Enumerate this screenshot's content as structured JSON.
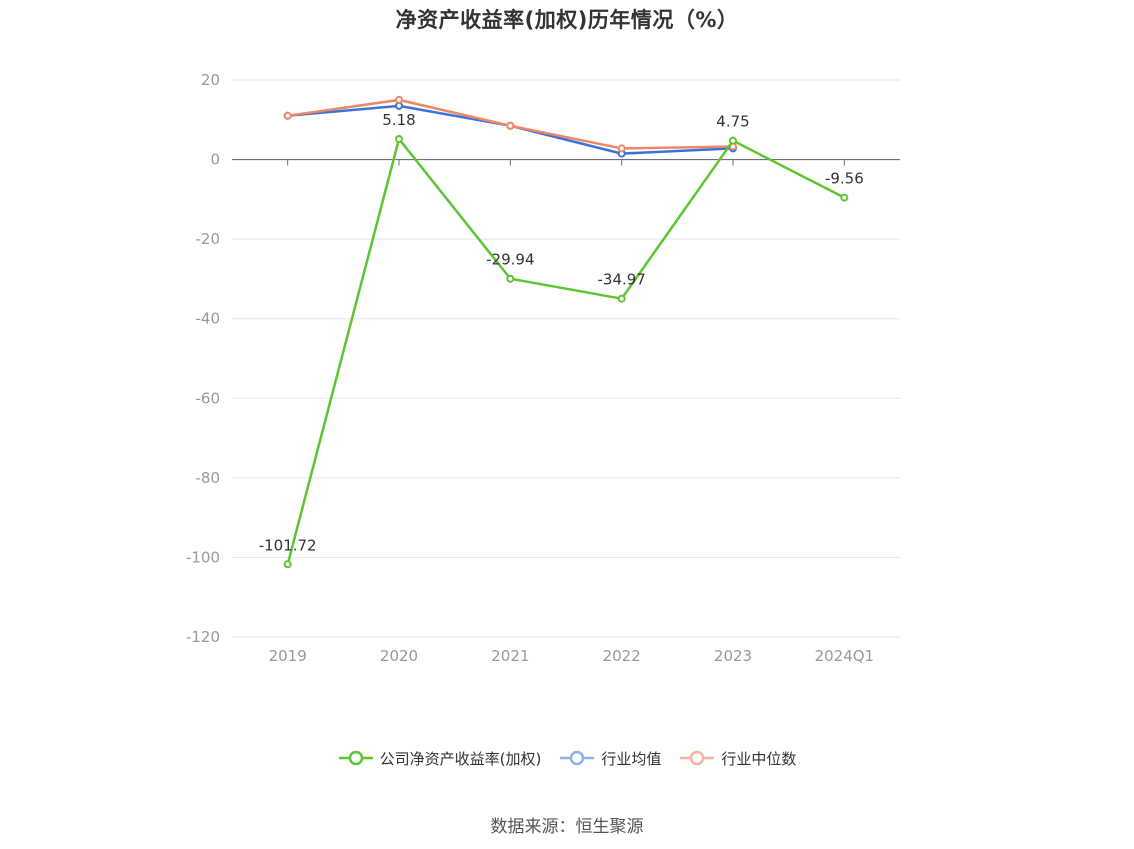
{
  "title": "净资产收益率(加权)历年情况（%）",
  "source": "数据来源：恒生聚源",
  "chart_data": {
    "type": "line",
    "title": "净资产收益率(加权)历年情况（%）",
    "categories": [
      "2019",
      "2020",
      "2021",
      "2022",
      "2023",
      "2024Q1"
    ],
    "ylim": [
      -120,
      20
    ],
    "yticks": [
      20,
      0,
      -20,
      -40,
      -60,
      -80,
      -100,
      -120
    ],
    "grid": true,
    "legend_position": "bottom-center",
    "series": [
      {
        "name": "公司净资产收益率(加权)",
        "color": "#5cc530",
        "values": [
          -101.72,
          5.18,
          -29.94,
          -34.97,
          4.75,
          -9.56
        ],
        "labels": [
          "-101.72",
          "5.18",
          "-29.94",
          "-34.97",
          "4.75",
          "-9.56"
        ],
        "show_labels": true
      },
      {
        "name": "行业均值",
        "color": "#3b72dd",
        "legend_color": "#8fb0ee",
        "values": [
          11.0,
          13.5,
          8.5,
          1.5,
          2.8,
          null
        ],
        "show_labels": false
      },
      {
        "name": "行业中位数",
        "color": "#ee8766",
        "legend_color": "#f5b49f",
        "values": [
          11.0,
          15.0,
          8.5,
          2.8,
          3.3,
          null
        ],
        "show_labels": false
      }
    ]
  },
  "colors": {
    "axis": "#6e7079",
    "grid": "#e0e6f1",
    "tick_text": "#999999",
    "label_text": "#333333"
  }
}
